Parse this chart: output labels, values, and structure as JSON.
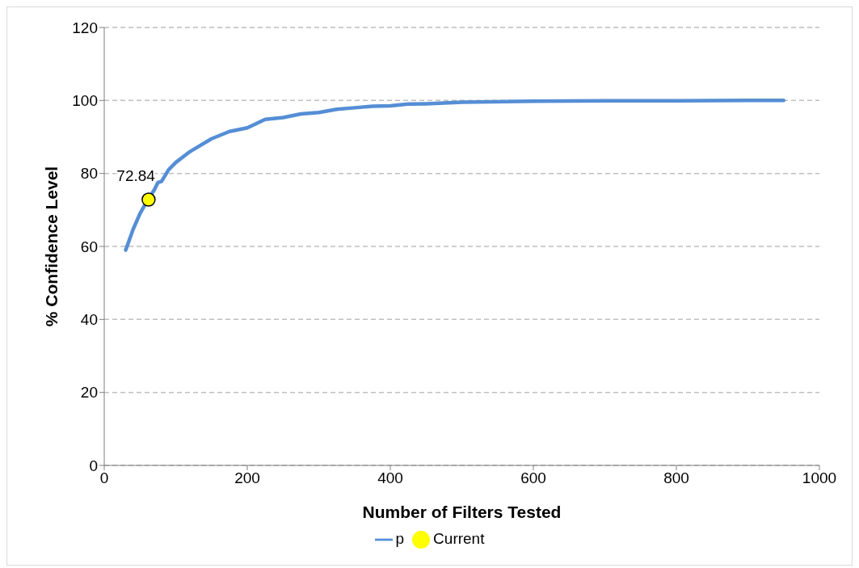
{
  "chart_data": {
    "type": "line",
    "xlabel": "Number of Filters Tested",
    "ylabel": "% Confidence Level",
    "xlim": [
      0,
      1000
    ],
    "xticks": [
      0,
      200,
      400,
      600,
      800,
      1000
    ],
    "ylim": [
      0,
      120
    ],
    "yticks": [
      0,
      20,
      40,
      60,
      80,
      100,
      120
    ],
    "grid": "y",
    "legend": "bottom",
    "series": [
      {
        "name": "p",
        "marker": "none",
        "color": "#558ed5",
        "x": [
          30,
          40,
          50,
          60,
          70,
          75,
          80,
          90,
          100,
          120,
          150,
          175,
          200,
          225,
          250,
          275,
          300,
          325,
          350,
          375,
          400,
          425,
          450,
          475,
          500,
          600,
          700,
          800,
          900,
          950
        ],
        "values": [
          59,
          64.5,
          69,
          72.5,
          75.5,
          77.5,
          77.8,
          81,
          83,
          86,
          89.5,
          91.5,
          92.5,
          94.8,
          95.3,
          96.3,
          96.7,
          97.6,
          98,
          98.4,
          98.5,
          99,
          99.1,
          99.3,
          99.5,
          99.8,
          99.9,
          99.9,
          100,
          100
        ]
      },
      {
        "name": "Current",
        "type": "scatter",
        "marker": "circle",
        "color": "#ffff00",
        "x": [
          62
        ],
        "values": [
          72.84
        ],
        "value_labels": [
          "72.84"
        ]
      }
    ]
  }
}
